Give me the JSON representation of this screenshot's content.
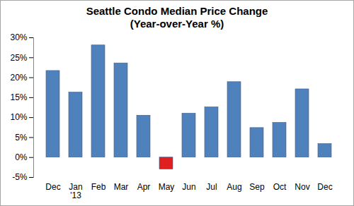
{
  "chart_data": {
    "type": "bar",
    "title": "Seattle Condo  Median Price Change",
    "subtitle": "(Year-over-Year %)",
    "categories": [
      "Dec",
      "Jan\n'13",
      "Feb",
      "Mar",
      "Apr",
      "May",
      "Jun",
      "Jul",
      "Aug",
      "Sep",
      "Oct",
      "Nov",
      "Dec"
    ],
    "values": [
      21.7,
      16.3,
      28.1,
      23.6,
      10.5,
      -3.0,
      11.0,
      12.6,
      18.9,
      7.4,
      8.7,
      17.1,
      3.4
    ],
    "colors": [
      "#4f81bd",
      "#4f81bd",
      "#4f81bd",
      "#4f81bd",
      "#4f81bd",
      "#e02020",
      "#4f81bd",
      "#4f81bd",
      "#4f81bd",
      "#4f81bd",
      "#4f81bd",
      "#4f81bd",
      "#4f81bd"
    ],
    "ylim": [
      -5,
      30
    ],
    "yticks": [
      {
        "value": -5,
        "label": "-5%"
      },
      {
        "value": 0,
        "label": "0%"
      },
      {
        "value": 5,
        "label": "5%"
      },
      {
        "value": 10,
        "label": "10%"
      },
      {
        "value": 15,
        "label": "15%"
      },
      {
        "value": 20,
        "label": "20%"
      },
      {
        "value": 25,
        "label": "25%"
      },
      {
        "value": 30,
        "label": "30%"
      }
    ],
    "grid": false
  }
}
